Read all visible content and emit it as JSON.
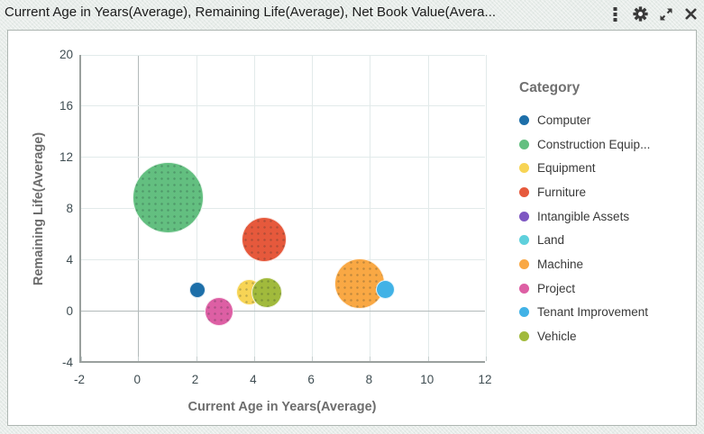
{
  "window": {
    "title": "Current Age in Years(Average), Remaining Life(Average), Net Book Value(Avera...",
    "toolbar_icons": [
      "menu-dots",
      "settings-gear",
      "expand",
      "close"
    ]
  },
  "chart_data": {
    "type": "scatter",
    "subtype": "bubble",
    "title": "Current Age in Years(Average), Remaining Life(Average), Net Book Value(Avera...",
    "xlabel": "Current Age in Years(Average)",
    "ylabel": "Remaining Life(Average)",
    "size_dimension": "Net Book Value(Average)",
    "xlim": [
      -2,
      12
    ],
    "ylim": [
      -4,
      20
    ],
    "x_ticks": [
      -2,
      0,
      2,
      4,
      6,
      8,
      10,
      12
    ],
    "y_ticks": [
      20,
      16,
      12,
      8,
      4,
      0,
      -4
    ],
    "grid": true,
    "legend_title": "Category",
    "legend_position": "right",
    "points": [
      {
        "category": "Computer",
        "x": 2.0,
        "y": 1.7,
        "radius_px": 9,
        "color": "#1d6fa9",
        "pattern": false
      },
      {
        "category": "Construction Equipment",
        "x": 1.0,
        "y": 8.9,
        "radius_px": 39.5,
        "color": "#63bf80",
        "pattern": true
      },
      {
        "category": "Equipment",
        "x": 3.8,
        "y": 1.5,
        "radius_px": 14.5,
        "color": "#f7d455",
        "pattern": true
      },
      {
        "category": "Furniture",
        "x": 4.3,
        "y": 5.6,
        "radius_px": 25,
        "color": "#e6593c",
        "pattern": true
      },
      {
        "category": "Machine",
        "x": 7.6,
        "y": 2.2,
        "radius_px": 28,
        "color": "#f9a844",
        "pattern": true
      },
      {
        "category": "Project",
        "x": 2.75,
        "y": 0.0,
        "radius_px": 16,
        "color": "#dd5fa4",
        "pattern": true
      },
      {
        "category": "Tenant Improvement",
        "x": 8.5,
        "y": 1.7,
        "radius_px": 10.5,
        "color": "#41b2e6",
        "pattern": false
      },
      {
        "category": "Vehicle",
        "x": 4.4,
        "y": 1.5,
        "radius_px": 17,
        "color": "#a1ba3c",
        "pattern": true
      }
    ],
    "legend": [
      {
        "label": "Computer",
        "color": "#1d6fa9"
      },
      {
        "label": "Construction Equip...",
        "color": "#63bf80"
      },
      {
        "label": "Equipment",
        "color": "#f7d455"
      },
      {
        "label": "Furniture",
        "color": "#e6593c"
      },
      {
        "label": "Intangible Assets",
        "color": "#7e57c2"
      },
      {
        "label": "Land",
        "color": "#5fd0dc"
      },
      {
        "label": "Machine",
        "color": "#f9a844"
      },
      {
        "label": "Project",
        "color": "#dd5fa4"
      },
      {
        "label": "Tenant Improvement",
        "color": "#41b2e6"
      },
      {
        "label": "Vehicle",
        "color": "#a1ba3c"
      }
    ]
  }
}
